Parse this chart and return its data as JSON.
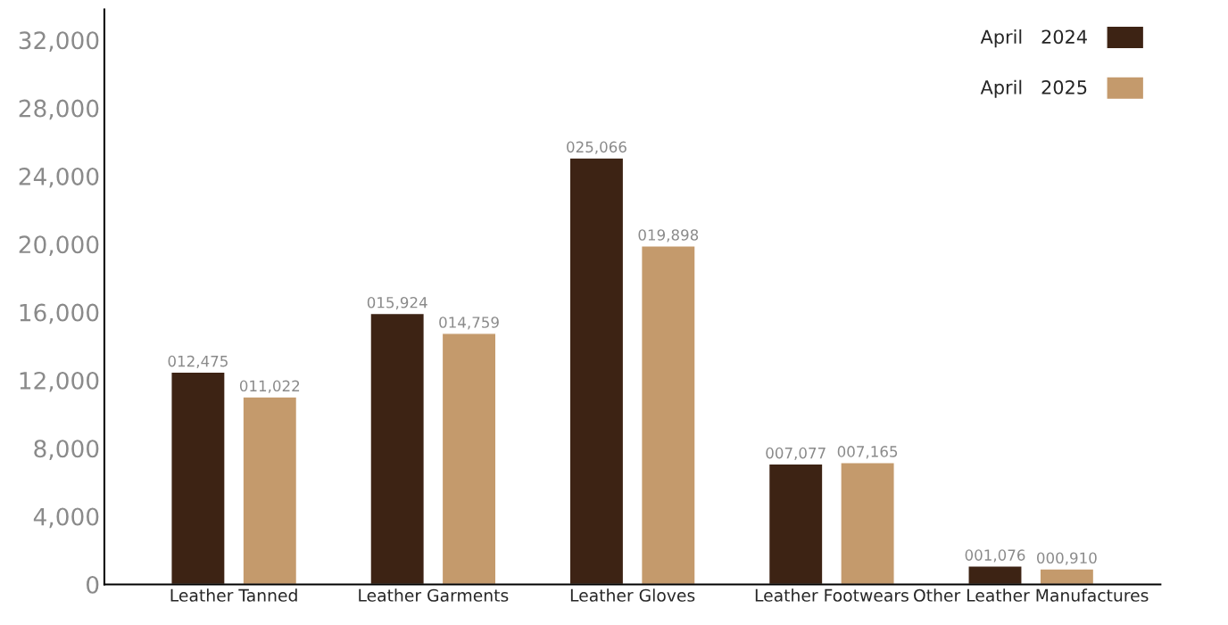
{
  "chart_data": {
    "type": "bar",
    "categories": [
      "Leather Tanned",
      "Leather Garments",
      "Leather Gloves",
      "Leather Footwears",
      "Other Leather Manufactures"
    ],
    "series": [
      {
        "name": "April   2024",
        "color": "#3d2314",
        "values": [
          12475,
          15924,
          25066,
          7077,
          1076
        ],
        "value_labels": [
          "012,475",
          "015,924",
          "025,066",
          "007,077",
          "001,076"
        ]
      },
      {
        "name": "April   2025",
        "color": "#c49a6c",
        "values": [
          11022,
          14759,
          19898,
          7165,
          910
        ],
        "value_labels": [
          "011,022",
          "014,759",
          "019,898",
          "007,165",
          "000,910"
        ]
      }
    ],
    "ylim": [
      0,
      33800
    ],
    "yticks": [
      {
        "value": 0,
        "label": "0"
      },
      {
        "value": 4000,
        "label": "4,000"
      },
      {
        "value": 8000,
        "label": "8,000"
      },
      {
        "value": 12000,
        "label": "12,000"
      },
      {
        "value": 16000,
        "label": "16,000"
      },
      {
        "value": 20000,
        "label": "20,000"
      },
      {
        "value": 24000,
        "label": "24,000"
      },
      {
        "value": 28000,
        "label": "28,000"
      },
      {
        "value": 32000,
        "label": "32,000"
      }
    ],
    "grid": false,
    "legend": "top right"
  }
}
